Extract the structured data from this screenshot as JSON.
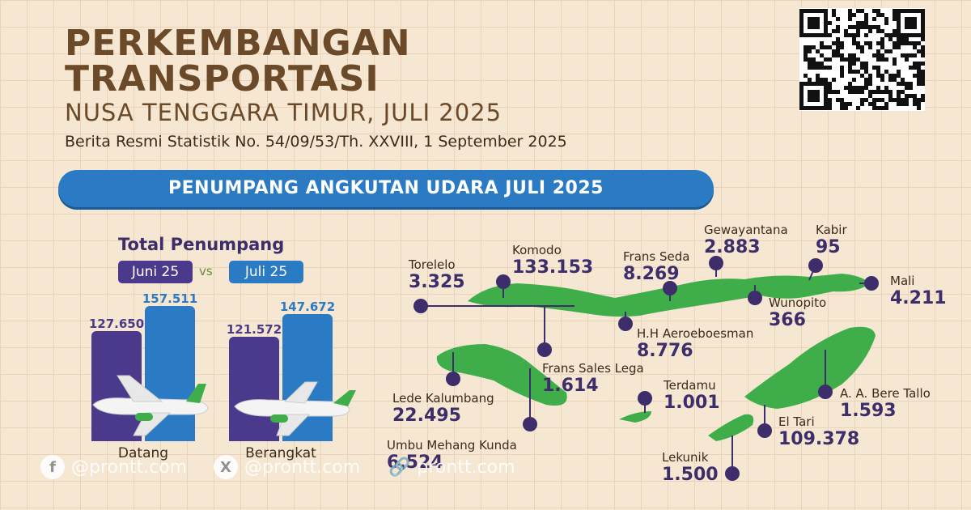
{
  "header": {
    "title_line1": "PERKEMBANGAN",
    "title_line2": "TRANSPORTASI",
    "subtitle": "NUSA TENGGARA TIMUR, JULI 2025",
    "release": "Berita Resmi Statistik No. 54/09/53/Th. XXVIII, 1 September 2025"
  },
  "banner": "PENUMPANG ANGKUTAN UDARA JULI 2025",
  "total": {
    "title": "Total Penumpang",
    "legend_juni": "Juni 25",
    "legend_vs": "vs",
    "legend_juli": "Juli 25"
  },
  "chart_data": [
    {
      "type": "bar",
      "title": "Total Penumpang",
      "categories": [
        "Datang",
        "Berangkat"
      ],
      "series": [
        {
          "name": "Juni 25",
          "values": [
            127650,
            121572
          ],
          "labels": [
            "127.650",
            "121.572"
          ],
          "color": "#4b3a8c"
        },
        {
          "name": "Juli 25",
          "values": [
            157511,
            147672
          ],
          "labels": [
            "157.511",
            "147.672"
          ],
          "color": "#2b7bc4"
        }
      ],
      "ylim": [
        0,
        160000
      ]
    }
  ],
  "airports": [
    {
      "name": "Torelelo",
      "value": "3.325"
    },
    {
      "name": "Komodo",
      "value": "133.153"
    },
    {
      "name": "Frans Seda",
      "value": "8.269"
    },
    {
      "name": "Gewayantana",
      "value": "2.883"
    },
    {
      "name": "Kabir",
      "value": "95"
    },
    {
      "name": "Mali",
      "value": "4.211"
    },
    {
      "name": "Wunopito",
      "value": "366"
    },
    {
      "name": "H.H Aeroeboesman",
      "value": "8.776"
    },
    {
      "name": "Frans Sales Lega",
      "value": "1.614"
    },
    {
      "name": "Lede Kalumbang",
      "value": "22.495"
    },
    {
      "name": "Terdamu",
      "value": "1.001"
    },
    {
      "name": "A. A. Bere Tallo",
      "value": "1.593"
    },
    {
      "name": "El Tari",
      "value": "109.378"
    },
    {
      "name": "Umbu Mehang Kunda",
      "value": "6.524"
    },
    {
      "name": "Lekunik",
      "value": "1.500"
    }
  ],
  "watermark": {
    "facebook": "@prontt.com",
    "x": "@prontt.com",
    "web": "prontt.com",
    "facebook_icon": "f",
    "x_icon": "X",
    "web_icon": "🔗"
  },
  "colors": {
    "juni": "#4b3a8c",
    "juli": "#2b7bc4",
    "map": "#3fae4a",
    "pin": "#3d2d6b"
  }
}
